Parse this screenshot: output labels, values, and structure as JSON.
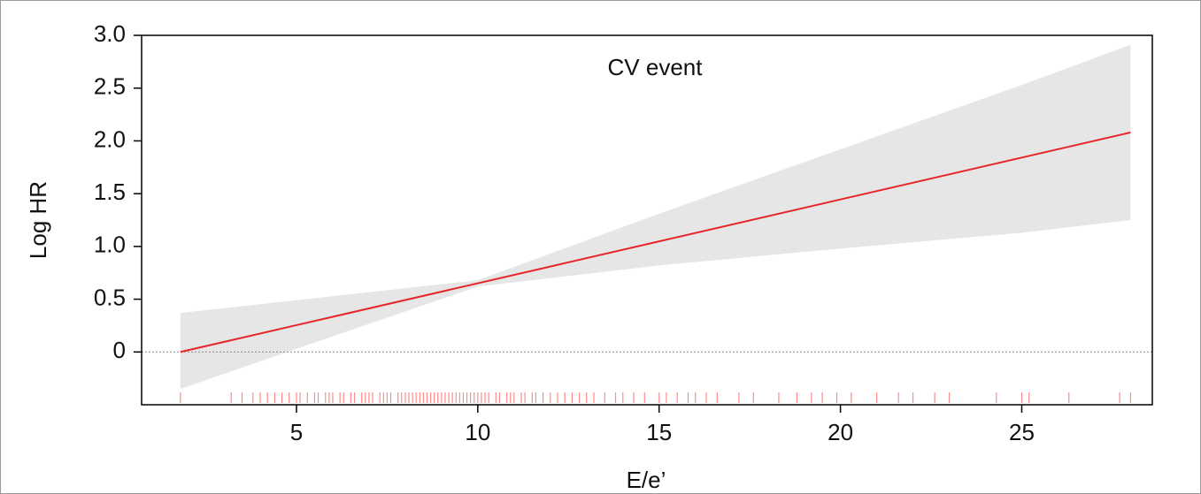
{
  "chart_data": {
    "type": "line",
    "title": "CV event",
    "x_label": "E/e’",
    "y_label": "Log HR",
    "x": [
      1.8,
      5,
      10,
      15,
      20,
      25,
      28
    ],
    "series": [
      {
        "color": "#e8262a",
        "values": [
          0,
          0.254,
          0.651,
          1.048,
          1.445,
          1.842,
          2.08
        ]
      }
    ],
    "band": {
      "color": "#e6e6e6",
      "lower": [
        -0.35,
        0.03,
        0.62,
        0.82,
        0.98,
        1.13,
        1.25
      ],
      "upper": [
        0.37,
        0.49,
        0.68,
        1.31,
        1.92,
        2.53,
        2.91
      ]
    },
    "rug": [
      1.8,
      3.2,
      3.5,
      3.8,
      4.0,
      4.2,
      4.4,
      4.6,
      4.8,
      5.0,
      5.1,
      5.3,
      5.5,
      5.6,
      5.8,
      5.9,
      6.0,
      6.2,
      6.3,
      6.5,
      6.6,
      6.8,
      6.9,
      7.0,
      7.1,
      7.3,
      7.4,
      7.5,
      7.6,
      7.8,
      7.9,
      8.0,
      8.1,
      8.2,
      8.3,
      8.4,
      8.5,
      8.6,
      8.7,
      8.8,
      8.9,
      9.0,
      9.1,
      9.2,
      9.3,
      9.4,
      9.5,
      9.6,
      9.7,
      9.8,
      9.9,
      10.0,
      10.1,
      10.2,
      10.3,
      10.5,
      10.6,
      10.8,
      10.9,
      11.0,
      11.2,
      11.3,
      11.5,
      11.6,
      11.8,
      12.0,
      12.2,
      12.4,
      12.6,
      12.8,
      13.0,
      13.2,
      13.5,
      13.8,
      14.0,
      14.3,
      14.6,
      15.0,
      15.2,
      15.5,
      15.8,
      16.0,
      16.3,
      16.6,
      17.2,
      17.6,
      18.3,
      18.8,
      19.2,
      19.5,
      19.9,
      20.3,
      21.0,
      21.6,
      22.0,
      22.6,
      23.0,
      24.3,
      25.0,
      25.2,
      26.3,
      27.7,
      28.0
    ],
    "rug_color": "#ff0000",
    "hline": 0,
    "xlim": [
      0.73,
      28.6
    ],
    "ylim": [
      -0.5,
      3.0
    ],
    "xticks": [
      5,
      10,
      15,
      20,
      25
    ],
    "yticks": [
      0,
      0.5,
      {
        "value": 1,
        "label": "1.0"
      },
      1.5,
      {
        "value": 2,
        "label": "2.0"
      },
      2.5,
      {
        "value": 3,
        "label": "3.0"
      }
    ]
  }
}
